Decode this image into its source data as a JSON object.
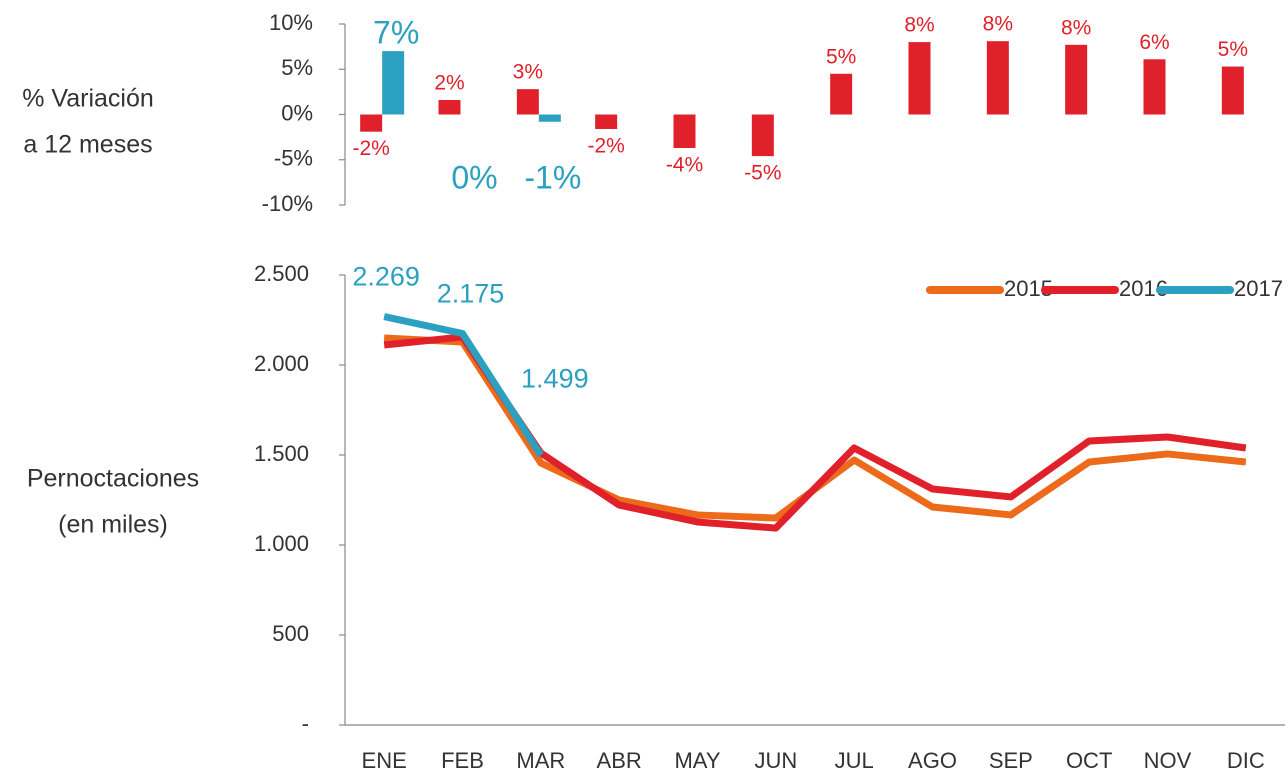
{
  "chart_data": [
    {
      "type": "bar",
      "ylabel": [
        "% Variación",
        "a 12 meses"
      ],
      "ylim": [
        -10,
        10
      ],
      "yticks": [
        {
          "value": 10,
          "label": "10%"
        },
        {
          "value": 5,
          "label": "5%"
        },
        {
          "value": 0,
          "label": "0%"
        },
        {
          "value": -5,
          "label": "-5%"
        },
        {
          "value": -10,
          "label": "-10%"
        }
      ],
      "series": [
        {
          "color": "#e0202a",
          "values": [
            -1.9,
            1.6,
            2.8,
            -1.6,
            -3.7,
            -4.6,
            4.5,
            8.0,
            8.1,
            7.7,
            6.1,
            5.3
          ],
          "value_labels": [
            "-2%",
            "2%",
            "3%",
            "-2%",
            "-4%",
            "-5%",
            "5%",
            "8%",
            "8%",
            "8%",
            "6%",
            "5%"
          ]
        },
        {
          "color": "#2ba0c0",
          "values": [
            7.0,
            0,
            -0.8,
            null,
            null,
            null,
            null,
            null,
            null,
            null,
            null,
            null
          ],
          "value_labels": [
            "7%",
            "0%",
            "-1%",
            null,
            null,
            null,
            null,
            null,
            null,
            null,
            null,
            null
          ]
        }
      ]
    },
    {
      "type": "line",
      "ylabel": [
        "Pernoctaciones",
        "(en miles)"
      ],
      "categories": [
        "ENE",
        "FEB",
        "MAR",
        "ABR",
        "MAY",
        "JUN",
        "JUL",
        "AGO",
        "SEP",
        "OCT",
        "NOV",
        "DIC"
      ],
      "ylim": [
        0,
        2500
      ],
      "yticks": [
        {
          "value": 0,
          "label": "-"
        },
        500,
        {
          "value": 1000,
          "label": "1.000"
        },
        {
          "value": 1500,
          "label": "1.500"
        },
        {
          "value": 2000,
          "label": "2.000"
        },
        {
          "value": 2500,
          "label": "2.500"
        }
      ],
      "legend": "top-right",
      "series": [
        {
          "name": "2015",
          "color": "#ec6a1a",
          "values": [
            2150,
            2128,
            1456,
            1250,
            1167,
            1150,
            1472,
            1211,
            1167,
            1461,
            1506,
            1461
          ]
        },
        {
          "name": "2016",
          "color": "#e0202a",
          "values": [
            2111,
            2156,
            1511,
            1222,
            1128,
            1094,
            1539,
            1311,
            1267,
            1578,
            1600,
            1539
          ]
        },
        {
          "name": "2017",
          "color": "#2ba0c0",
          "values": [
            2269,
            2175,
            1499,
            null,
            null,
            null,
            null,
            null,
            null,
            null,
            null,
            null
          ],
          "value_labels": [
            "2.269",
            "2.175",
            "1.499",
            null,
            null,
            null,
            null,
            null,
            null,
            null,
            null,
            null
          ]
        }
      ]
    }
  ]
}
